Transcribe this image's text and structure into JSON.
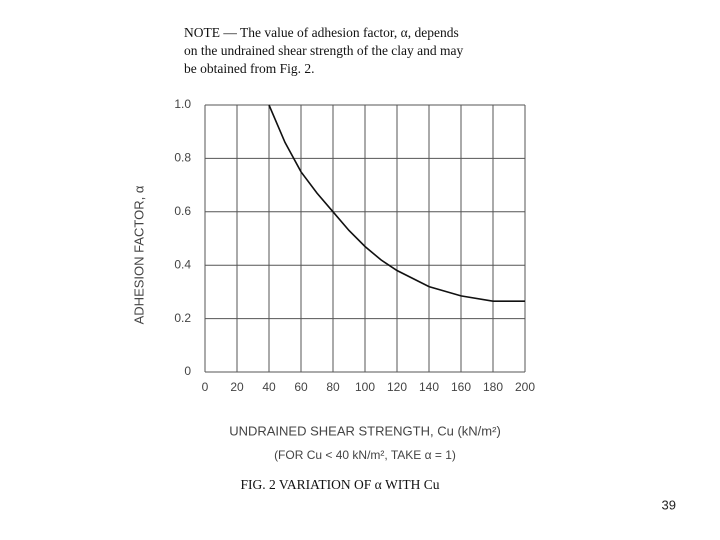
{
  "note": [
    "NOTE — The value of adhesion factor, α, depends",
    "on the undrained shear strength of the clay  and may",
    "be obtained from Fig. 2."
  ],
  "chart_data": {
    "type": "line",
    "x_label": "UNDRAINED SHEAR STRENGTH, Cu (kN/m²)",
    "x_note": "(FOR Cu < 40 kN/m², TAKE α = 1)",
    "y_label": "ADHESION FACTOR, α",
    "caption": "FIG. 2 VARIATION OF α WITH Cu",
    "x": [
      40,
      50,
      60,
      70,
      80,
      90,
      100,
      110,
      120,
      140,
      160,
      180,
      200
    ],
    "values": [
      1.0,
      0.86,
      0.75,
      0.67,
      0.6,
      0.53,
      0.47,
      0.42,
      0.38,
      0.32,
      0.285,
      0.265,
      0.265
    ],
    "color": "#111111",
    "xlim": [
      0,
      200
    ],
    "xticks": [
      0,
      20,
      40,
      60,
      80,
      100,
      120,
      140,
      160,
      180,
      200
    ],
    "ylim": [
      0,
      1
    ],
    "yticks": [
      0,
      0.2,
      0.4,
      0.6,
      0.8,
      {
        "value": 1,
        "label": "1.0"
      }
    ],
    "grid": true
  },
  "page_number": "39"
}
